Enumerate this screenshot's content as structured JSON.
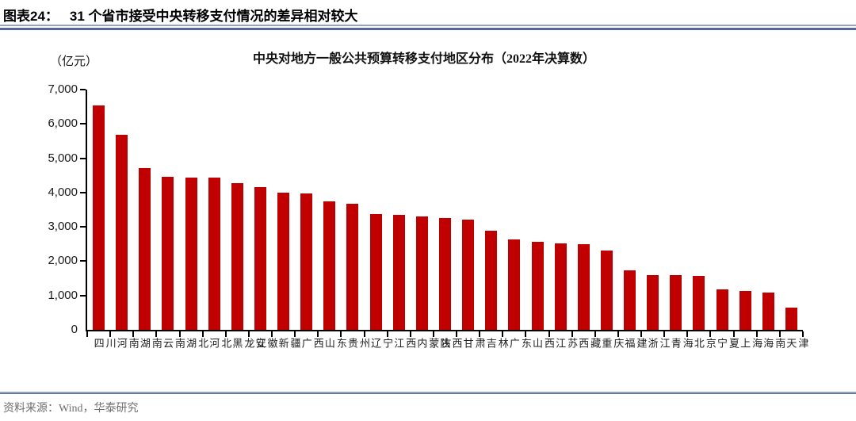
{
  "figure": {
    "label": "图表24：",
    "title": "31 个省市接受中央转移支付情况的差异相对较大"
  },
  "chart_data": {
    "type": "bar",
    "title": "中央对地方一般公共预算转移支付地区分布（2022年决算数）",
    "unit_label": "（亿元）",
    "categories": [
      "四川",
      "河南",
      "湖南",
      "云南",
      "湖北",
      "河北",
      "黑龙江",
      "安徽",
      "新疆",
      "广西",
      "山东",
      "贵州",
      "辽宁",
      "江西",
      "内蒙古",
      "陕西",
      "甘肃",
      "吉林",
      "广东",
      "山西",
      "江苏",
      "西藏",
      "重庆",
      "福建",
      "浙江",
      "青海",
      "北京",
      "宁夏",
      "上海",
      "海南",
      "天津"
    ],
    "values": [
      6530,
      5690,
      4720,
      4460,
      4440,
      4430,
      4270,
      4160,
      3990,
      3970,
      3740,
      3670,
      3370,
      3340,
      3310,
      3260,
      3210,
      2890,
      2630,
      2570,
      2510,
      2500,
      2310,
      1740,
      1600,
      1590,
      1570,
      1180,
      1140,
      1080,
      650
    ],
    "ylim": [
      0,
      7000
    ],
    "ytick_step": 1000,
    "ytick_labels": [
      "0",
      "1,000",
      "2,000",
      "3,000",
      "4,000",
      "5,000",
      "6,000",
      "7,000"
    ],
    "grid": false,
    "legend": false,
    "bar_color": "#c00000"
  },
  "footer": {
    "source": "资料来源：Wind，华泰研究"
  },
  "colors": {
    "bar": "#c00000",
    "axis": "#000000",
    "rule_light": "#93a5c2",
    "rule_dark": "#54689b",
    "source_text": "#6e6e6e"
  }
}
